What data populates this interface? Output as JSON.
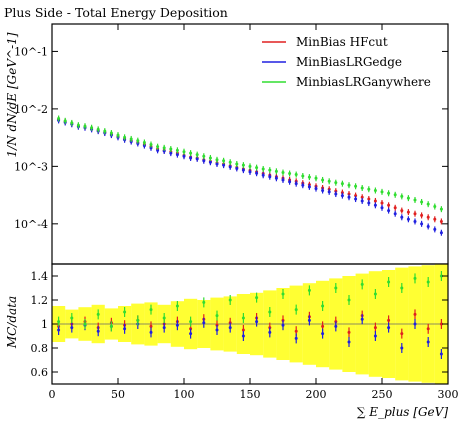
{
  "chart_data": [
    {
      "type": "scatter",
      "panel": "main",
      "title": "Plus Side - Total Energy Deposition",
      "ylabel": "1/N dN/dE [GeV^-1]",
      "xlim": [
        0,
        300
      ],
      "ylim": [
        2e-05,
        0.3
      ],
      "yscale": "log",
      "legend_position": "top-right",
      "y_tick_labels": [
        "10^-1",
        "10^-2",
        "10^-3",
        "10^-4"
      ],
      "series": [
        {
          "name": "MinBias HFcut",
          "color": "#e02020",
          "x": [
            5,
            10,
            15,
            20,
            25,
            30,
            35,
            40,
            45,
            50,
            55,
            60,
            65,
            70,
            75,
            80,
            85,
            90,
            95,
            100,
            105,
            110,
            115,
            120,
            125,
            130,
            135,
            140,
            145,
            150,
            155,
            160,
            165,
            170,
            175,
            180,
            185,
            190,
            195,
            200,
            205,
            210,
            215,
            220,
            225,
            230,
            235,
            240,
            245,
            250,
            255,
            260,
            265,
            270,
            275,
            280,
            285,
            290,
            295
          ],
          "y": [
            0.0065,
            0.006,
            0.0055,
            0.005,
            0.0048,
            0.0045,
            0.0042,
            0.0039,
            0.0036,
            0.0033,
            0.003,
            0.0028,
            0.0026,
            0.0024,
            0.0022,
            0.002,
            0.0019,
            0.0018,
            0.0017,
            0.00155,
            0.00145,
            0.0014,
            0.0013,
            0.00122,
            0.00115,
            0.0011,
            0.00102,
            0.00096,
            0.0009,
            0.00085,
            0.0008,
            0.00075,
            0.0007,
            0.00066,
            0.00062,
            0.00058,
            0.00055,
            0.00051,
            0.00048,
            0.00045,
            0.00042,
            0.0004,
            0.00037,
            0.00035,
            0.00033,
            0.00031,
            0.00029,
            0.00027,
            0.00025,
            0.00023,
            0.00021,
            0.00019,
            0.00017,
            0.00016,
            0.00015,
            0.00014,
            0.00013,
            0.00012,
            0.00011
          ]
        },
        {
          "name": "MinBiasLRGedge",
          "color": "#2020e0",
          "x": [
            5,
            10,
            15,
            20,
            25,
            30,
            35,
            40,
            45,
            50,
            55,
            60,
            65,
            70,
            75,
            80,
            85,
            90,
            95,
            100,
            105,
            110,
            115,
            120,
            125,
            130,
            135,
            140,
            145,
            150,
            155,
            160,
            165,
            170,
            175,
            180,
            185,
            190,
            195,
            200,
            205,
            210,
            215,
            220,
            225,
            230,
            235,
            240,
            245,
            250,
            255,
            260,
            265,
            270,
            275,
            280,
            285,
            290,
            295
          ],
          "y": [
            0.0063,
            0.0058,
            0.0054,
            0.0049,
            0.0047,
            0.0044,
            0.0041,
            0.0038,
            0.0035,
            0.0032,
            0.0029,
            0.0027,
            0.0025,
            0.0023,
            0.0021,
            0.0019,
            0.00185,
            0.0017,
            0.0016,
            0.0015,
            0.0014,
            0.00135,
            0.00125,
            0.00118,
            0.0011,
            0.00105,
            0.00098,
            0.00092,
            0.00086,
            0.0008,
            0.00076,
            0.0007,
            0.00066,
            0.00062,
            0.00058,
            0.00054,
            0.0005,
            0.00047,
            0.00044,
            0.00041,
            0.00038,
            0.00036,
            0.00033,
            0.00031,
            0.00029,
            0.00027,
            0.00025,
            0.00023,
            0.00021,
            0.00019,
            0.00017,
            0.00015,
            0.00013,
            0.00012,
            0.00011,
            0.0001,
            9e-05,
            8e-05,
            7e-05
          ]
        },
        {
          "name": "MinbiasLRGanywhere",
          "color": "#30dd30",
          "x": [
            5,
            10,
            15,
            20,
            25,
            30,
            35,
            40,
            45,
            50,
            55,
            60,
            65,
            70,
            75,
            80,
            85,
            90,
            95,
            100,
            105,
            110,
            115,
            120,
            125,
            130,
            135,
            140,
            145,
            150,
            155,
            160,
            165,
            170,
            175,
            180,
            185,
            190,
            195,
            200,
            205,
            210,
            215,
            220,
            225,
            230,
            235,
            240,
            245,
            250,
            255,
            260,
            265,
            270,
            275,
            280,
            285,
            290,
            295
          ],
          "y": [
            0.0068,
            0.0062,
            0.0057,
            0.0052,
            0.005,
            0.0047,
            0.0044,
            0.0041,
            0.0038,
            0.0035,
            0.0032,
            0.003,
            0.0028,
            0.0026,
            0.0024,
            0.0022,
            0.0021,
            0.002,
            0.0019,
            0.0018,
            0.0017,
            0.0016,
            0.0015,
            0.0014,
            0.0013,
            0.00125,
            0.00118,
            0.0011,
            0.00105,
            0.001,
            0.00095,
            0.0009,
            0.00086,
            0.00082,
            0.00078,
            0.00075,
            0.00072,
            0.00068,
            0.00065,
            0.00062,
            0.00058,
            0.00055,
            0.00052,
            0.0005,
            0.00047,
            0.00045,
            0.00042,
            0.0004,
            0.00038,
            0.00036,
            0.00034,
            0.00032,
            0.0003,
            0.00028,
            0.00026,
            0.00024,
            0.00022,
            0.0002,
            0.00018
          ]
        }
      ]
    },
    {
      "type": "scatter",
      "panel": "ratio",
      "ylabel": "MC/data",
      "xlabel": "∑ E_plus [GeV]",
      "xlim": [
        0,
        300
      ],
      "ylim": [
        0.5,
        1.5
      ],
      "x_tick_labels": [
        "0",
        "50",
        "100",
        "150",
        "200",
        "250",
        "300"
      ],
      "y_tick_labels": [
        "0.6",
        "0.8",
        "1",
        "1.2",
        "1.4"
      ],
      "band_colors": {
        "inner": "#ffff00",
        "outer": "#cfcf00"
      },
      "series": [
        {
          "name": "MinBias HFcut",
          "color": "#e02020",
          "x": [
            5,
            15,
            25,
            35,
            45,
            55,
            65,
            75,
            85,
            95,
            105,
            115,
            125,
            135,
            145,
            155,
            165,
            175,
            185,
            195,
            205,
            215,
            225,
            235,
            245,
            255,
            265,
            275,
            285,
            295
          ],
          "y": [
            0.98,
            1.0,
            1.02,
            0.97,
            1.01,
            0.99,
            1.03,
            0.98,
            1.0,
            1.02,
            0.96,
            1.04,
            0.99,
            1.01,
            0.95,
            1.05,
            0.97,
            1.03,
            0.94,
            1.06,
            0.98,
            1.02,
            0.93,
            1.07,
            0.97,
            1.03,
            0.92,
            1.08,
            0.96,
            1.0
          ]
        },
        {
          "name": "MinBiasLRGedge",
          "color": "#2020e0",
          "x": [
            5,
            15,
            25,
            35,
            45,
            55,
            65,
            75,
            85,
            95,
            105,
            115,
            125,
            135,
            145,
            155,
            165,
            175,
            185,
            195,
            205,
            215,
            225,
            235,
            245,
            255,
            265,
            275,
            285,
            295
          ],
          "y": [
            0.95,
            0.97,
            0.99,
            0.94,
            0.98,
            0.96,
            1.0,
            0.93,
            0.97,
            0.99,
            0.92,
            1.01,
            0.95,
            0.97,
            0.9,
            1.02,
            0.93,
            0.99,
            0.88,
            1.03,
            0.92,
            0.98,
            0.85,
            1.04,
            0.9,
            0.97,
            0.8,
            1.0,
            0.85,
            0.75
          ]
        },
        {
          "name": "MinbiasLRGanywhere",
          "color": "#30dd30",
          "x": [
            5,
            15,
            25,
            35,
            45,
            55,
            65,
            75,
            85,
            95,
            105,
            115,
            125,
            135,
            145,
            155,
            165,
            175,
            185,
            195,
            205,
            215,
            225,
            235,
            245,
            255,
            265,
            275,
            285,
            295
          ],
          "y": [
            1.02,
            1.05,
            1.0,
            1.08,
            0.98,
            1.1,
            1.03,
            1.12,
            1.05,
            1.15,
            1.02,
            1.18,
            1.07,
            1.2,
            1.05,
            1.22,
            1.1,
            1.25,
            1.12,
            1.28,
            1.15,
            1.3,
            1.2,
            1.33,
            1.25,
            1.35,
            1.3,
            1.38,
            1.35,
            1.4
          ]
        }
      ]
    }
  ]
}
